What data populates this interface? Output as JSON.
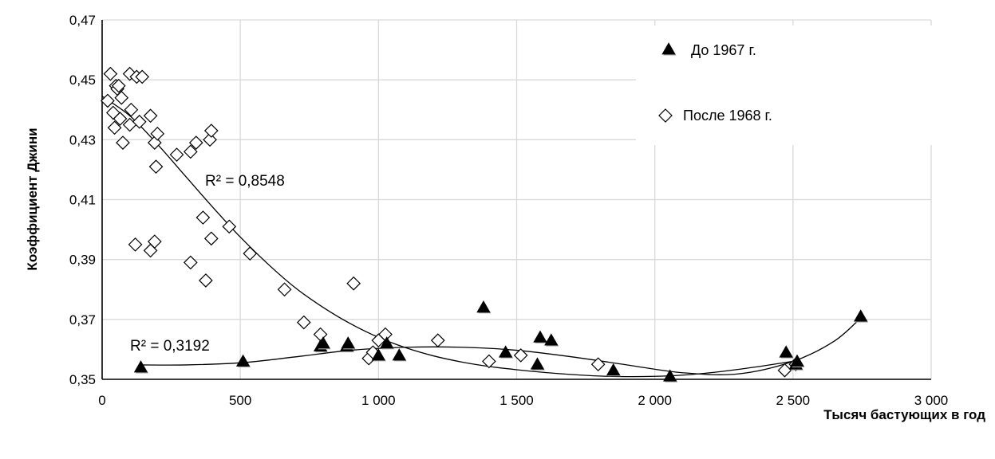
{
  "chart_data": {
    "type": "scatter",
    "title": "",
    "xlabel": "Тысяч бастующих в год",
    "ylabel": "Коэффициент Джини",
    "xlim": [
      0,
      3000
    ],
    "ylim": [
      0.35,
      0.47
    ],
    "x_ticks": [
      "0",
      "500",
      "1 000",
      "1 500",
      "2 000",
      "2 500",
      "3 000"
    ],
    "y_ticks": [
      "0,35",
      "0,37",
      "0,39",
      "0,41",
      "0,43",
      "0,45",
      "0,47"
    ],
    "grid": true,
    "legend_position": "top-right",
    "series": [
      {
        "name": "До 1967 г.",
        "marker": "triangle",
        "color": "#000000",
        "r2_label": "R² = 0,3192",
        "points": [
          [
            140,
            0.354
          ],
          [
            510,
            0.356
          ],
          [
            790,
            0.361
          ],
          [
            800,
            0.362
          ],
          [
            885,
            0.361
          ],
          [
            890,
            0.362
          ],
          [
            1000,
            0.358
          ],
          [
            1030,
            0.362
          ],
          [
            1075,
            0.358
          ],
          [
            1380,
            0.374
          ],
          [
            1460,
            0.359
          ],
          [
            1575,
            0.355
          ],
          [
            1585,
            0.364
          ],
          [
            1625,
            0.363
          ],
          [
            1850,
            0.353
          ],
          [
            2055,
            0.351
          ],
          [
            2475,
            0.359
          ],
          [
            2510,
            0.355
          ],
          [
            2515,
            0.356
          ],
          [
            2745,
            0.371
          ]
        ],
        "trendline": [
          [
            140,
            0.3548
          ],
          [
            300,
            0.3548
          ],
          [
            500,
            0.3555
          ],
          [
            700,
            0.3575
          ],
          [
            900,
            0.3597
          ],
          [
            1100,
            0.3607
          ],
          [
            1300,
            0.3607
          ],
          [
            1500,
            0.3597
          ],
          [
            1700,
            0.3575
          ],
          [
            1900,
            0.3548
          ],
          [
            2100,
            0.3522
          ],
          [
            2300,
            0.3518
          ],
          [
            2500,
            0.356
          ],
          [
            2650,
            0.3628
          ],
          [
            2745,
            0.3705
          ]
        ]
      },
      {
        "name": "После 1968 г.",
        "marker": "diamond",
        "color": "#ffffff",
        "r2_label": "R² = 0,8548",
        "points": [
          [
            20,
            0.443
          ],
          [
            30,
            0.452
          ],
          [
            40,
            0.439
          ],
          [
            45,
            0.434
          ],
          [
            50,
            0.448
          ],
          [
            55,
            0.447
          ],
          [
            60,
            0.448
          ],
          [
            65,
            0.437
          ],
          [
            70,
            0.444
          ],
          [
            75,
            0.429
          ],
          [
            100,
            0.452
          ],
          [
            100,
            0.435
          ],
          [
            105,
            0.44
          ],
          [
            120,
            0.395
          ],
          [
            125,
            0.451
          ],
          [
            135,
            0.436
          ],
          [
            145,
            0.451
          ],
          [
            175,
            0.438
          ],
          [
            175,
            0.393
          ],
          [
            190,
            0.429
          ],
          [
            190,
            0.396
          ],
          [
            195,
            0.421
          ],
          [
            200,
            0.432
          ],
          [
            270,
            0.425
          ],
          [
            320,
            0.426
          ],
          [
            320,
            0.389
          ],
          [
            340,
            0.429
          ],
          [
            365,
            0.404
          ],
          [
            375,
            0.383
          ],
          [
            390,
            0.43
          ],
          [
            395,
            0.433
          ],
          [
            395,
            0.397
          ],
          [
            460,
            0.401
          ],
          [
            535,
            0.392
          ],
          [
            660,
            0.38
          ],
          [
            730,
            0.369
          ],
          [
            790,
            0.365
          ],
          [
            910,
            0.382
          ],
          [
            965,
            0.357
          ],
          [
            980,
            0.359
          ],
          [
            1000,
            0.363
          ],
          [
            1025,
            0.365
          ],
          [
            1215,
            0.363
          ],
          [
            1400,
            0.356
          ],
          [
            1515,
            0.358
          ],
          [
            1795,
            0.355
          ],
          [
            2470,
            0.353
          ],
          [
            2510,
            0.355
          ]
        ],
        "trendline": [
          [
            0,
            0.4445
          ],
          [
            100,
            0.438
          ],
          [
            200,
            0.4285
          ],
          [
            300,
            0.418
          ],
          [
            400,
            0.4075
          ],
          [
            500,
            0.3975
          ],
          [
            600,
            0.3885
          ],
          [
            700,
            0.3805
          ],
          [
            800,
            0.374
          ],
          [
            900,
            0.3685
          ],
          [
            1000,
            0.364
          ],
          [
            1100,
            0.3605
          ],
          [
            1200,
            0.3578
          ],
          [
            1300,
            0.3558
          ],
          [
            1400,
            0.3543
          ],
          [
            1500,
            0.3532
          ],
          [
            1600,
            0.3523
          ],
          [
            1700,
            0.3516
          ],
          [
            1800,
            0.3511
          ],
          [
            1900,
            0.3509
          ],
          [
            2000,
            0.351
          ],
          [
            2100,
            0.3514
          ],
          [
            2200,
            0.3522
          ],
          [
            2300,
            0.3533
          ],
          [
            2400,
            0.3546
          ],
          [
            2500,
            0.356
          ]
        ]
      }
    ]
  }
}
